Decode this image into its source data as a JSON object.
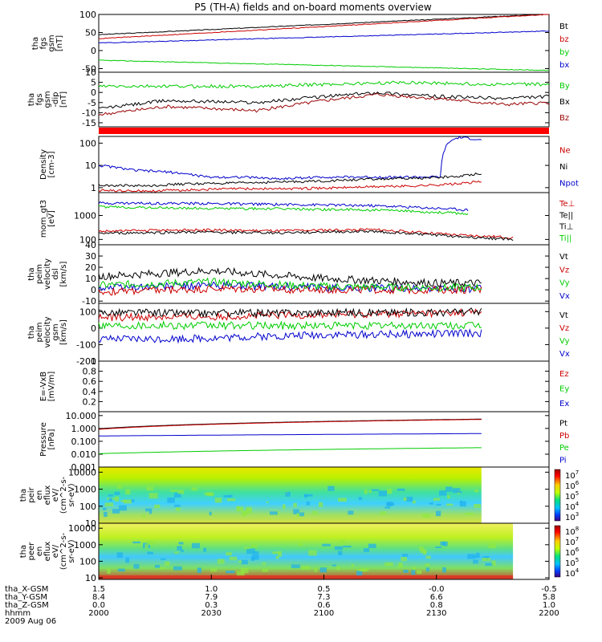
{
  "title": "P5 (TH-A) fields and on-board moments overview",
  "date_label": "2009 Aug 06",
  "chart_data": [
    {
      "type": "line",
      "ylabel": [
        "tha",
        "fgs",
        "gsm",
        "[nT]"
      ],
      "ylim": [
        -60,
        100
      ],
      "yticks": [
        100,
        50,
        0,
        -50
      ],
      "legend": [
        {
          "name": "Bt",
          "color": "#000000"
        },
        {
          "name": "bz",
          "color": "#cc0000"
        },
        {
          "name": "by",
          "color": "#00cc00"
        },
        {
          "name": "bx",
          "color": "#0000cc"
        }
      ],
      "series": [
        {
          "name": "Bt",
          "color": "#000000",
          "x": [
            0,
            1
          ],
          "y": [
            44,
            101
          ]
        },
        {
          "name": "bz",
          "color": "#cc0000",
          "x": [
            0,
            1
          ],
          "y": [
            33,
            100
          ]
        },
        {
          "name": "bx",
          "color": "#0000cc",
          "x": [
            0,
            1
          ],
          "y": [
            21,
            54
          ]
        },
        {
          "name": "by",
          "color": "#00cc00",
          "x": [
            0,
            1
          ],
          "y": [
            -27,
            -55
          ]
        }
      ]
    },
    {
      "type": "line",
      "ylabel": [
        "tha",
        "fgs",
        "gsm",
        "-dip",
        "[nT]"
      ],
      "ylim": [
        -17,
        10
      ],
      "yticks": [
        10,
        5,
        0,
        -5,
        -10,
        -15
      ],
      "legend": [
        {
          "name": "By",
          "color": "#00cc00"
        },
        {
          "name": "Bx",
          "color": "#000000"
        },
        {
          "name": "Bz",
          "color": "#990000"
        }
      ],
      "series": [
        {
          "name": "By",
          "color": "#00cc00",
          "x": [
            0,
            0.15,
            0.35,
            0.5,
            0.7,
            0.85,
            1
          ],
          "y": [
            3,
            3,
            3,
            4,
            5,
            4,
            4
          ]
        },
        {
          "name": "Bx",
          "color": "#000000",
          "x": [
            0,
            0.15,
            0.35,
            0.5,
            0.62,
            0.75,
            0.9,
            1
          ],
          "y": [
            -8,
            -4,
            -5,
            -2,
            0,
            -2,
            -3,
            -2
          ]
        },
        {
          "name": "Bz",
          "color": "#990000",
          "x": [
            0,
            0.15,
            0.35,
            0.5,
            0.62,
            0.75,
            0.9,
            1
          ],
          "y": [
            -11,
            -7,
            -9,
            -4,
            -1,
            -3,
            -6,
            -5
          ]
        }
      ]
    },
    {
      "type": "line",
      "ylabel": [
        "Density",
        "[cm-3]"
      ],
      "ylog": true,
      "ylim": [
        0.6,
        200
      ],
      "yticks": [
        100,
        10,
        1
      ],
      "legend": [
        {
          "name": "Ne",
          "color": "#cc0000"
        },
        {
          "name": "Ni",
          "color": "#000000"
        },
        {
          "name": "Npot",
          "color": "#0000cc"
        }
      ],
      "series": [
        {
          "name": "Npot",
          "color": "#0000cc",
          "x": [
            0,
            0.08,
            0.16,
            0.24,
            0.32,
            0.4,
            0.5,
            0.6,
            0.7,
            0.76,
            0.78,
            0.8,
            0.84,
            0.85
          ],
          "y": [
            10,
            6,
            5,
            3,
            3,
            2.5,
            3,
            3,
            3,
            3,
            120,
            180,
            150,
            130
          ]
        },
        {
          "name": "Ni",
          "color": "#000000",
          "x": [
            0,
            0.1,
            0.2,
            0.3,
            0.4,
            0.5,
            0.6,
            0.7,
            0.8,
            0.85
          ],
          "y": [
            1.3,
            1.2,
            1.5,
            1.6,
            1.8,
            2,
            2.4,
            2.6,
            3.2,
            4.5
          ]
        },
        {
          "name": "Ne",
          "color": "#cc0000",
          "x": [
            0,
            0.1,
            0.2,
            0.3,
            0.4,
            0.5,
            0.6,
            0.7,
            0.8,
            0.85
          ],
          "y": [
            0.75,
            0.7,
            0.8,
            0.9,
            0.9,
            0.95,
            1.1,
            1.2,
            1.5,
            1.9
          ]
        }
      ]
    },
    {
      "type": "line",
      "ylabel": [
        "mom_gt3",
        "[eV]"
      ],
      "ylog": true,
      "ylim": [
        60,
        9000
      ],
      "yticks": [
        1000,
        100
      ],
      "legend": [
        {
          "name": "Te⊥",
          "color": "#cc0000"
        },
        {
          "name": "Te||",
          "color": "#000000"
        },
        {
          "name": "Ti⊥",
          "color": "#000000"
        },
        {
          "name": "Ti||",
          "color": "#00cc00"
        }
      ],
      "series": [
        {
          "name": "Ti⊥",
          "color": "#0000cc",
          "x": [
            0,
            0.2,
            0.4,
            0.6,
            0.8,
            0.82
          ],
          "y": [
            3300,
            3200,
            2900,
            2600,
            1800,
            1700
          ]
        },
        {
          "name": "Ti||",
          "color": "#00cc00",
          "x": [
            0,
            0.2,
            0.4,
            0.6,
            0.8,
            0.82
          ],
          "y": [
            2300,
            2000,
            1900,
            1700,
            1250,
            1200
          ]
        },
        {
          "name": "Te⊥",
          "color": "#cc0000",
          "x": [
            0,
            0.2,
            0.4,
            0.6,
            0.8,
            0.92
          ],
          "y": [
            220,
            250,
            230,
            260,
            150,
            120
          ]
        },
        {
          "name": "Te||",
          "color": "#000000",
          "x": [
            0,
            0.2,
            0.4,
            0.6,
            0.8,
            0.92
          ],
          "y": [
            180,
            200,
            190,
            220,
            130,
            100
          ]
        }
      ]
    },
    {
      "type": "line",
      "ylabel": [
        "tha",
        "peim",
        "velocity",
        "dsl",
        "[km/s]"
      ],
      "ylim": [
        -12,
        40
      ],
      "yticks": [
        40,
        30,
        20,
        10,
        0,
        -10
      ],
      "legend": [
        {
          "name": "Vt",
          "color": "#000000"
        },
        {
          "name": "Vz",
          "color": "#cc0000"
        },
        {
          "name": "Vy",
          "color": "#00cc00"
        },
        {
          "name": "Vx",
          "color": "#0000cc"
        }
      ],
      "series": [
        {
          "name": "Vx",
          "color": "#0000cc",
          "x": [
            0,
            0.25,
            0.5,
            0.75,
            0.85
          ],
          "y": [
            2,
            4,
            2,
            1,
            1
          ]
        },
        {
          "name": "Vz",
          "color": "#cc0000",
          "x": [
            0,
            0.25,
            0.5,
            0.75,
            0.85
          ],
          "y": [
            -2,
            1,
            0,
            0,
            0
          ]
        },
        {
          "name": "Vy",
          "color": "#00cc00",
          "x": [
            0,
            0.25,
            0.5,
            0.75,
            0.85
          ],
          "y": [
            4,
            7,
            3,
            2,
            2
          ]
        },
        {
          "name": "Vt",
          "color": "#000000",
          "x": [
            0,
            0.25,
            0.5,
            0.75,
            0.85
          ],
          "y": [
            12,
            17,
            10,
            6,
            6
          ]
        }
      ]
    },
    {
      "type": "line",
      "ylabel": [
        "tha",
        "peim",
        "velocity",
        "gsm",
        "[km/s]"
      ],
      "ylim": [
        -200,
        150
      ],
      "yticks": [
        100,
        0,
        -100,
        -200
      ],
      "legend": [
        {
          "name": "Vt",
          "color": "#000000"
        },
        {
          "name": "Vz",
          "color": "#cc0000"
        },
        {
          "name": "Vy",
          "color": "#00cc00"
        },
        {
          "name": "Vx",
          "color": "#0000cc"
        }
      ],
      "series": [
        {
          "name": "Vx",
          "color": "#0000cc",
          "x": [
            0,
            0.25,
            0.5,
            0.75,
            0.85
          ],
          "y": [
            -70,
            -60,
            -40,
            -35,
            -30
          ]
        },
        {
          "name": "Vy",
          "color": "#00cc00",
          "x": [
            0,
            0.25,
            0.5,
            0.75,
            0.85
          ],
          "y": [
            20,
            15,
            15,
            15,
            15
          ]
        },
        {
          "name": "Vz",
          "color": "#cc0000",
          "x": [
            0,
            0.25,
            0.5,
            0.75,
            0.85
          ],
          "y": [
            65,
            70,
            80,
            90,
            95
          ]
        },
        {
          "name": "Vt",
          "color": "#000000",
          "x": [
            0,
            0.25,
            0.5,
            0.75,
            0.85
          ],
          "y": [
            95,
            90,
            95,
            95,
            100
          ]
        }
      ]
    },
    {
      "type": "line",
      "ylabel": [
        "E=-VxB",
        "[mV/m]"
      ],
      "ylim": [
        0,
        1
      ],
      "yticks": [
        1.0,
        0.8,
        0.6,
        0.4,
        0.2
      ],
      "legend": [
        {
          "name": "Ez",
          "color": "#cc0000"
        },
        {
          "name": "Ey",
          "color": "#00cc00"
        },
        {
          "name": "Ex",
          "color": "#0000cc"
        }
      ],
      "series": []
    },
    {
      "type": "line",
      "ylabel": [
        "Pressure",
        "[nPa]"
      ],
      "ylog": true,
      "ylim": [
        0.001,
        20
      ],
      "yticks": [
        "10.000",
        "1.000",
        "0.100",
        "0.010",
        "0.001"
      ],
      "legend": [
        {
          "name": "Pt",
          "color": "#000000"
        },
        {
          "name": "Pb",
          "color": "#cc0000"
        },
        {
          "name": "Pe",
          "color": "#00cc00"
        },
        {
          "name": "Pi",
          "color": "#0000cc"
        }
      ],
      "series": [
        {
          "name": "Pt",
          "color": "#000000",
          "x": [
            0,
            0.85
          ],
          "y": [
            0.95,
            5.3
          ]
        },
        {
          "name": "Pb",
          "color": "#cc0000",
          "x": [
            0,
            0.85
          ],
          "y": [
            0.85,
            5.0
          ]
        },
        {
          "name": "Pi",
          "color": "#0000cc",
          "x": [
            0,
            0.85
          ],
          "y": [
            0.26,
            0.4
          ]
        },
        {
          "name": "Pe",
          "color": "#00cc00",
          "x": [
            0,
            0.85
          ],
          "y": [
            0.011,
            0.032
          ]
        }
      ]
    },
    {
      "type": "heatmap",
      "ylabel": [
        "tha",
        "peir",
        "en",
        "eflux",
        "eV/",
        "(cm^2-s-",
        "sr-eV)"
      ],
      "ylog": true,
      "ylim": [
        10,
        20000
      ],
      "yticks": [
        10000,
        1000,
        100,
        10
      ],
      "colorbar_ticks": [
        "10^7",
        "10^6",
        "10^5",
        "10^4",
        "10^3"
      ],
      "data_end_fraction": 0.85
    },
    {
      "type": "heatmap",
      "ylabel": [
        "tha",
        "peer",
        "en",
        "eflux",
        "eV/",
        "(cm^2-s-",
        "sr-eV)"
      ],
      "ylog": true,
      "ylim": [
        8,
        20000
      ],
      "yticks": [
        10000,
        1000,
        100,
        10
      ],
      "colorbar_ticks": [
        "10^8",
        "10^7",
        "10^6",
        "10^5",
        "10^4"
      ],
      "data_end_fraction": 0.92
    }
  ],
  "x_axis": {
    "rows": [
      {
        "label": "tha_X-GSM",
        "values": [
          "1.5",
          "1.0",
          "0.5",
          "-0.0",
          "-0.5"
        ]
      },
      {
        "label": "tha_Y-GSM",
        "values": [
          "8.4",
          "7.9",
          "7.3",
          "6.6",
          "5.8"
        ]
      },
      {
        "label": "tha_Z-GSM",
        "values": [
          "0.0",
          "0.3",
          "0.6",
          "0.8",
          "1.0"
        ]
      },
      {
        "label": "hhmm",
        "values": [
          "2000",
          "2030",
          "2100",
          "2130",
          "2200"
        ]
      }
    ]
  }
}
